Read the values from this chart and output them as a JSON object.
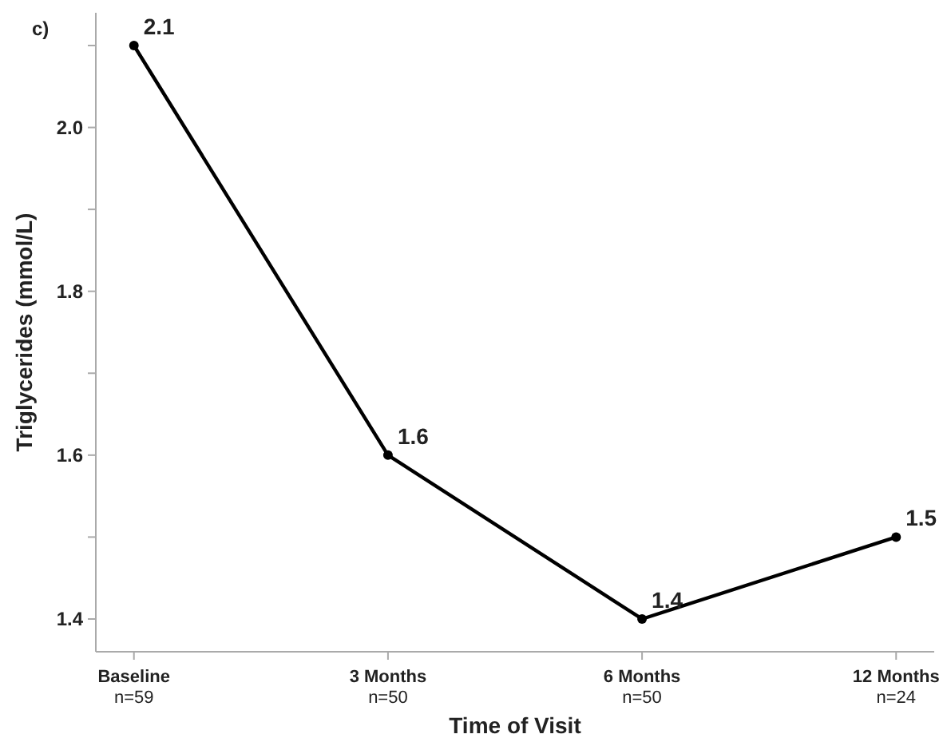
{
  "chart_data": {
    "type": "line",
    "xlabel": "Time of Visit",
    "ylabel": "Triglycerides (mmol/L)",
    "categories": [
      "Baseline\nn=59",
      "3 Months\nn=50",
      "6 Months\nn=50",
      "12 Months\nn=24"
    ],
    "series": [
      {
        "color": "#000000",
        "values": [
          2.1,
          1.6,
          1.4,
          1.5
        ]
      }
    ],
    "ylim": [
      1.36,
      2.14
    ],
    "yticks": [
      1.4,
      {
        "value": 1.5,
        "label": null
      },
      1.6,
      {
        "value": 1.7,
        "label": null
      },
      1.8,
      {
        "value": 1.9,
        "label": null
      },
      {
        "value": 2,
        "label": "2.0"
      },
      {
        "value": 2.1,
        "label": null
      }
    ],
    "data_labels": true,
    "marker": "circle",
    "line_style": "solid",
    "grid": false,
    "annotations": [
      "c)"
    ]
  }
}
